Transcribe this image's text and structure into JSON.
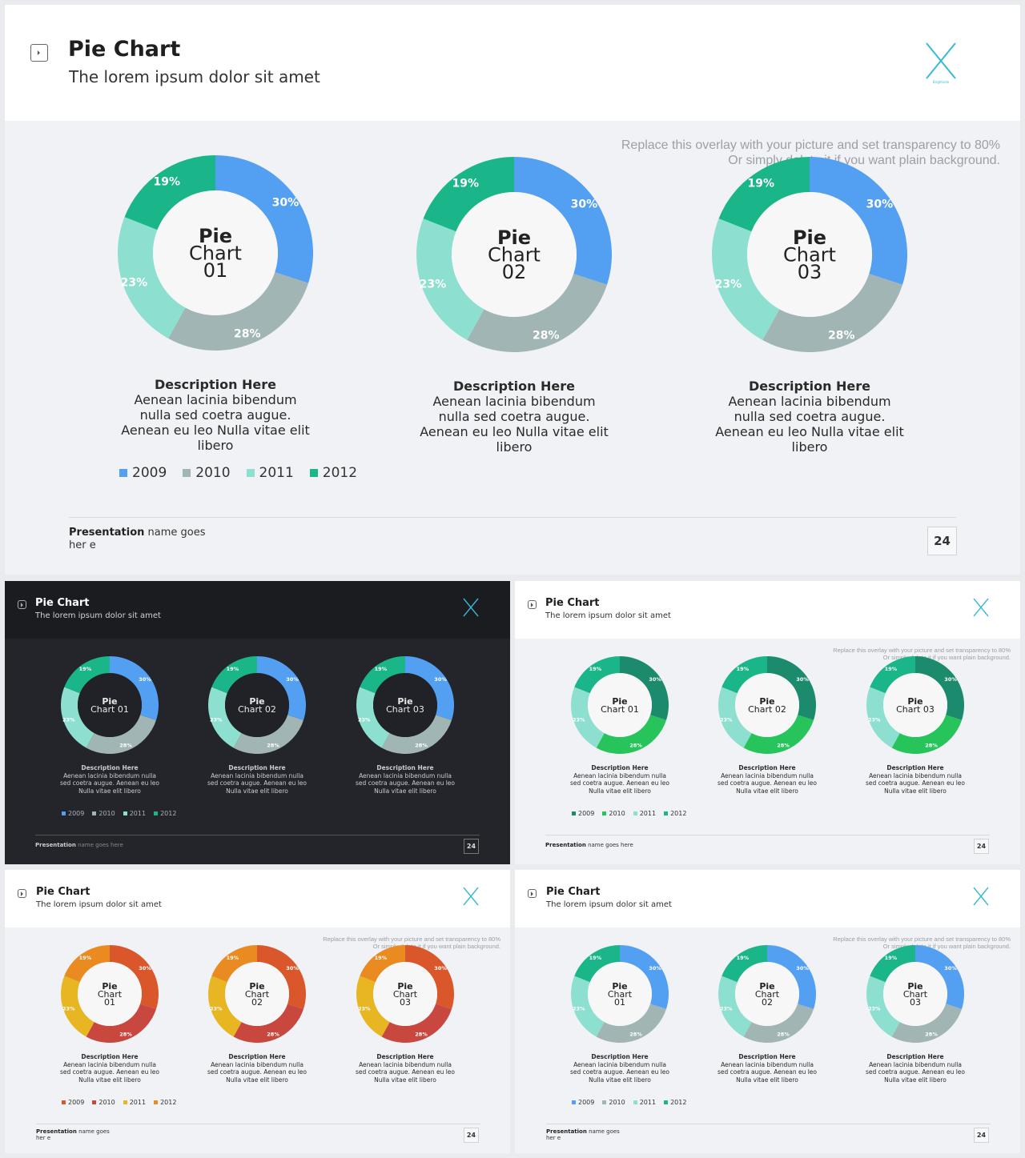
{
  "slide": {
    "title": "Pie Chart",
    "subtitle": "The lorem ipsum dolor sit amet",
    "overlay_line1": "Replace this overlay with your picture and set transparency to 80%",
    "overlay_line2": "Or simply delete it if you want plain background.",
    "overlay_line2_thumb": "Or simply delete it if you want plain background.",
    "footer_bold": "Presentation",
    "footer_rest": " name goes her e",
    "footer_rest_thumb": " name goes here",
    "page_number": "24",
    "logo_caption": "Brightside"
  },
  "charts": [
    {
      "center_line1": "Pie",
      "center_line2": "Chart",
      "center_line3": "01",
      "thumb_label": "Chart 01"
    },
    {
      "center_line1": "Pie",
      "center_line2": "Chart",
      "center_line3": "02",
      "thumb_label": "Chart 02"
    },
    {
      "center_line1": "Pie",
      "center_line2": "Chart",
      "center_line3": "03",
      "thumb_label": "Chart 03"
    }
  ],
  "description": {
    "title": "Description Here",
    "body": "Aenean lacinia bibendum nulla sed coetra augue. Aenean eu leo  Nulla vitae elit libero"
  },
  "chart_data": {
    "type": "pie",
    "categories": [
      "2009",
      "2010",
      "2011",
      "2012"
    ],
    "values": [
      30,
      28,
      23,
      19
    ],
    "labels": [
      "30%",
      "28%",
      "23%",
      "19%"
    ]
  },
  "legend": [
    "2009",
    "2010",
    "2011",
    "2012"
  ],
  "themes": {
    "main": {
      "colors": [
        "#539ff2",
        "#a0b5b4",
        "#8de0cf",
        "#1ab68a"
      ],
      "hole": "#f7f7f8",
      "center_text": "#222"
    },
    "dark": {
      "colors": [
        "#539ff2",
        "#a0b5b4",
        "#8de0cf",
        "#1ab68a"
      ],
      "hole": "#202227",
      "center_text": "#e8e8e8"
    },
    "green": {
      "colors": [
        "#1c8a6c",
        "#27c45c",
        "#8de0cf",
        "#1ab68a"
      ],
      "hole": "#f7f7f8",
      "center_text": "#222"
    },
    "orange": {
      "colors": [
        "#d9572a",
        "#c8483f",
        "#e8b622",
        "#e98b21"
      ],
      "hole": "#f7f7f8",
      "center_text": "#222"
    },
    "blue": {
      "colors": [
        "#539ff2",
        "#a0b5b4",
        "#8de0cf",
        "#1ab68a"
      ],
      "hole": "#f7f7f8",
      "center_text": "#222"
    }
  }
}
